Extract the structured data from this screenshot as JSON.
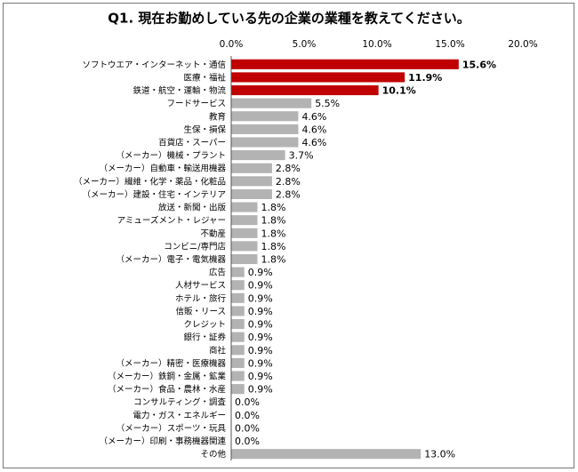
{
  "chart_data": {
    "type": "bar",
    "orientation": "horizontal",
    "title": "Q1. 現在お勤めしている先の企業の業種を教えてください。",
    "categories": [
      "ソフトウエア・インターネット・通信",
      "医療・福祉",
      "鉄道・航空・運輸・物流",
      "フードサービス",
      "教育",
      "生保・損保",
      "百貨店・スーパー",
      "（メーカー）機械・プラント",
      "（メーカー）自動車・輸送用機器",
      "（メーカー）繊維・化学・薬品・化粧品",
      "（メーカー）建設・住宅・インテリア",
      "放送・新聞・出版",
      "アミューズメント・レジャー",
      "不動産",
      "コンビニ/専門店",
      "（メーカー）電子・電気機器",
      "広告",
      "人材サービス",
      "ホテル・旅行",
      "信販・リース",
      "クレジット",
      "銀行・証券",
      "商社",
      "（メーカー）精密・医療機器",
      "（メーカー）鉄鋼・金属・鉱業",
      "（メーカー）食品・農林・水産",
      "コンサルティング・調査",
      "電力・ガス・エネルギー",
      "（メーカー）スポーツ・玩具",
      "（メーカー）印刷・事務機器関連",
      "その他"
    ],
    "values": [
      15.6,
      11.9,
      10.1,
      5.5,
      4.6,
      4.6,
      4.6,
      3.7,
      2.8,
      2.8,
      2.8,
      1.8,
      1.8,
      1.8,
      1.8,
      1.8,
      0.9,
      0.9,
      0.9,
      0.9,
      0.9,
      0.9,
      0.9,
      0.9,
      0.9,
      0.9,
      0.0,
      0.0,
      0.0,
      0.0,
      13.0
    ],
    "value_labels": [
      "15.6%",
      "11.9%",
      "10.1%",
      "5.5%",
      "4.6%",
      "4.6%",
      "4.6%",
      "3.7%",
      "2.8%",
      "2.8%",
      "2.8%",
      "1.8%",
      "1.8%",
      "1.8%",
      "1.8%",
      "1.8%",
      "0.9%",
      "0.9%",
      "0.9%",
      "0.9%",
      "0.9%",
      "0.9%",
      "0.9%",
      "0.9%",
      "0.9%",
      "0.9%",
      "0.0%",
      "0.0%",
      "0.0%",
      "0.0%",
      "13.0%"
    ],
    "colors": [
      "#c00000",
      "#c00000",
      "#c00000",
      "#b3b3b3",
      "#b3b3b3",
      "#b3b3b3",
      "#b3b3b3",
      "#b3b3b3",
      "#b3b3b3",
      "#b3b3b3",
      "#b3b3b3",
      "#b3b3b3",
      "#b3b3b3",
      "#b3b3b3",
      "#b3b3b3",
      "#b3b3b3",
      "#b3b3b3",
      "#b3b3b3",
      "#b3b3b3",
      "#b3b3b3",
      "#b3b3b3",
      "#b3b3b3",
      "#b3b3b3",
      "#b3b3b3",
      "#b3b3b3",
      "#b3b3b3",
      "#b3b3b3",
      "#b3b3b3",
      "#b3b3b3",
      "#b3b3b3",
      "#b3b3b3"
    ],
    "xlim": [
      0,
      20
    ],
    "xticks": [
      {
        "value": 0,
        "label": "0.0%"
      },
      {
        "value": 5,
        "label": "5.0%"
      },
      {
        "value": 10,
        "label": "10.0%"
      },
      {
        "value": 15,
        "label": "15.0%"
      },
      {
        "value": 20,
        "label": "20.0%"
      }
    ]
  }
}
